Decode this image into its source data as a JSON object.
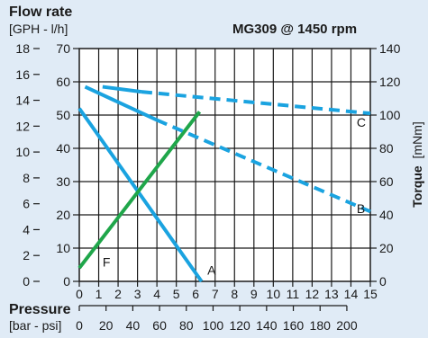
{
  "chart_data": {
    "type": "line",
    "title": "MG309 @ 1450 rpm",
    "flow_axis": {
      "title": "Flow rate",
      "unit": "[GPH - l/h]",
      "gph_ticks": [
        "0",
        "2",
        "4",
        "6",
        "8",
        "10",
        "12",
        "14",
        "16",
        "18"
      ],
      "lh_ticks": [
        "0",
        "10",
        "20",
        "30",
        "40",
        "50",
        "60",
        "70"
      ],
      "ylim_lh": [
        0,
        70
      ]
    },
    "torque_axis": {
      "title": "Torque",
      "unit": "[mNm]",
      "ticks": [
        "0",
        "20",
        "40",
        "60",
        "80",
        "100",
        "120",
        "140"
      ],
      "ylim": [
        0,
        140
      ]
    },
    "pressure_axis": {
      "title": "Pressure",
      "unit": "[bar - psi]",
      "bar_ticks": [
        "0",
        "1",
        "2",
        "3",
        "4",
        "5",
        "6",
        "7",
        "8",
        "9",
        "10",
        "11",
        "12",
        "13",
        "14",
        "15"
      ],
      "psi_ticks": [
        "0",
        "20",
        "40",
        "60",
        "80",
        "100",
        "120",
        "140",
        "160",
        "180",
        "200"
      ],
      "xlim_bar": [
        0,
        15
      ]
    },
    "series": [
      {
        "label": "A",
        "axis": "flow",
        "style": "solid",
        "color": "#1aa3e0",
        "x": [
          0,
          6.3
        ],
        "y": [
          52,
          0
        ]
      },
      {
        "label": "F",
        "axis": "flow",
        "style": "solid",
        "color": "#1fa64a",
        "x": [
          0,
          6.2
        ],
        "y": [
          4,
          51
        ]
      },
      {
        "label": "B",
        "axis": "torque",
        "style": "solid",
        "color": "#1aa3e0",
        "x": [
          0.3,
          4.0
        ],
        "y": [
          117,
          97
        ]
      },
      {
        "label": "B",
        "axis": "torque",
        "style": "dashed",
        "color": "#1aa3e0",
        "x": [
          4.0,
          15.0
        ],
        "y": [
          97,
          42
        ]
      },
      {
        "label": "C",
        "axis": "torque",
        "style": "solid",
        "color": "#1aa3e0",
        "x": [
          1.2,
          3.2
        ],
        "y": [
          117,
          114
        ]
      },
      {
        "label": "C",
        "axis": "torque",
        "style": "dashed",
        "color": "#1aa3e0",
        "x": [
          3.2,
          15.0
        ],
        "y": [
          114,
          101
        ]
      }
    ],
    "curve_labels": [
      {
        "text": "A",
        "x": 6.6,
        "y": 2
      },
      {
        "text": "F",
        "x": 1.2,
        "y": 4.5
      },
      {
        "text": "B",
        "x": 14.3,
        "y": 41
      },
      {
        "text": "C",
        "x": 14.3,
        "y": 93
      }
    ],
    "grid": true
  }
}
